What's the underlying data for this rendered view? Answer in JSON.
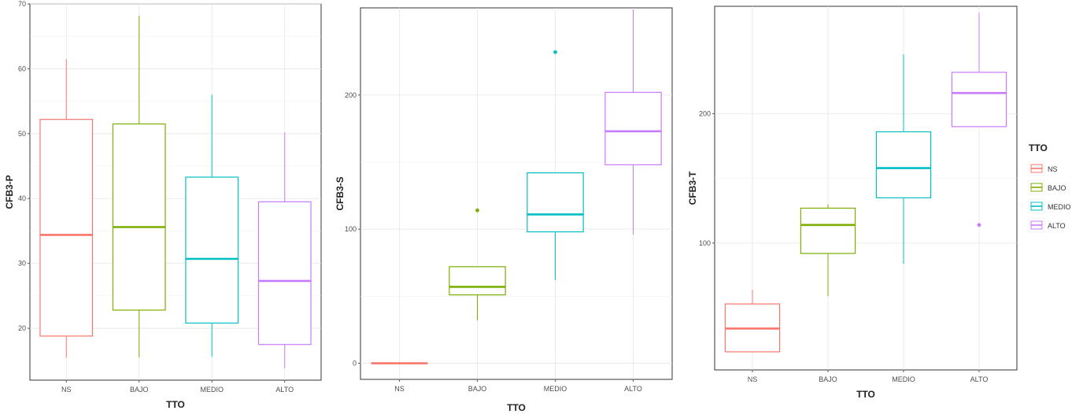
{
  "legend": {
    "title": "TTO",
    "items": [
      {
        "label": "NS",
        "color": "#F8766D"
      },
      {
        "label": "BAJO",
        "color": "#7CAE00"
      },
      {
        "label": "MEDIO",
        "color": "#00BFC4"
      },
      {
        "label": "ALTO",
        "color": "#C77CFF"
      }
    ]
  },
  "chart_data": [
    {
      "type": "boxplot",
      "xlabel": "TTO",
      "ylabel": "CFB3-P",
      "ylim": [
        12,
        70
      ],
      "yticks": [
        20,
        30,
        40,
        50,
        60,
        70
      ],
      "categories": [
        "NS",
        "BAJO",
        "MEDIO",
        "ALTO"
      ],
      "boxes": [
        {
          "category": "NS",
          "min": 15.5,
          "q1": 18.8,
          "median": 34.4,
          "q3": 52.2,
          "max": 61.5,
          "outliers": []
        },
        {
          "category": "BAJO",
          "min": 15.5,
          "q1": 22.8,
          "median": 35.6,
          "q3": 51.5,
          "max": 68.2,
          "outliers": []
        },
        {
          "category": "MEDIO",
          "min": 15.6,
          "q1": 20.8,
          "median": 30.7,
          "q3": 43.3,
          "max": 56.0,
          "outliers": []
        },
        {
          "category": "ALTO",
          "min": 13.8,
          "q1": 17.5,
          "median": 27.3,
          "q3": 39.5,
          "max": 50.2,
          "outliers": []
        }
      ]
    },
    {
      "type": "boxplot",
      "xlabel": "TTO",
      "ylabel": "CFB3-S",
      "ylim": [
        -12,
        265
      ],
      "yticks": [
        0,
        100,
        200
      ],
      "categories": [
        "NS",
        "BAJO",
        "MEDIO",
        "ALTO"
      ],
      "boxes": [
        {
          "category": "NS",
          "min": 0,
          "q1": 0,
          "median": 0,
          "q3": 0,
          "max": 0,
          "outliers": []
        },
        {
          "category": "BAJO",
          "min": 32,
          "q1": 51,
          "median": 57,
          "q3": 72,
          "max": 72,
          "outliers": [
            114
          ]
        },
        {
          "category": "MEDIO",
          "min": 62,
          "q1": 98,
          "median": 111,
          "q3": 142,
          "max": 142,
          "outliers": [
            232
          ]
        },
        {
          "category": "ALTO",
          "min": 96,
          "q1": 148,
          "median": 173,
          "q3": 202,
          "max": 264,
          "outliers": []
        }
      ]
    },
    {
      "type": "boxplot",
      "xlabel": "TTO",
      "ylabel": "CFB3-T",
      "ylim": [
        2,
        283
      ],
      "yticks": [
        100,
        200
      ],
      "categories": [
        "NS",
        "BAJO",
        "MEDIO",
        "ALTO"
      ],
      "boxes": [
        {
          "category": "NS",
          "min": 16,
          "q1": 16,
          "median": 34,
          "q3": 53,
          "max": 64,
          "outliers": []
        },
        {
          "category": "BAJO",
          "min": 59,
          "q1": 92,
          "median": 114,
          "q3": 127,
          "max": 130,
          "outliers": []
        },
        {
          "category": "MEDIO",
          "min": 84,
          "q1": 135,
          "median": 158,
          "q3": 186,
          "max": 246,
          "outliers": []
        },
        {
          "category": "ALTO",
          "min": 190,
          "q1": 190,
          "median": 216,
          "q3": 232,
          "max": 278,
          "outliers": [
            114
          ]
        }
      ]
    }
  ]
}
